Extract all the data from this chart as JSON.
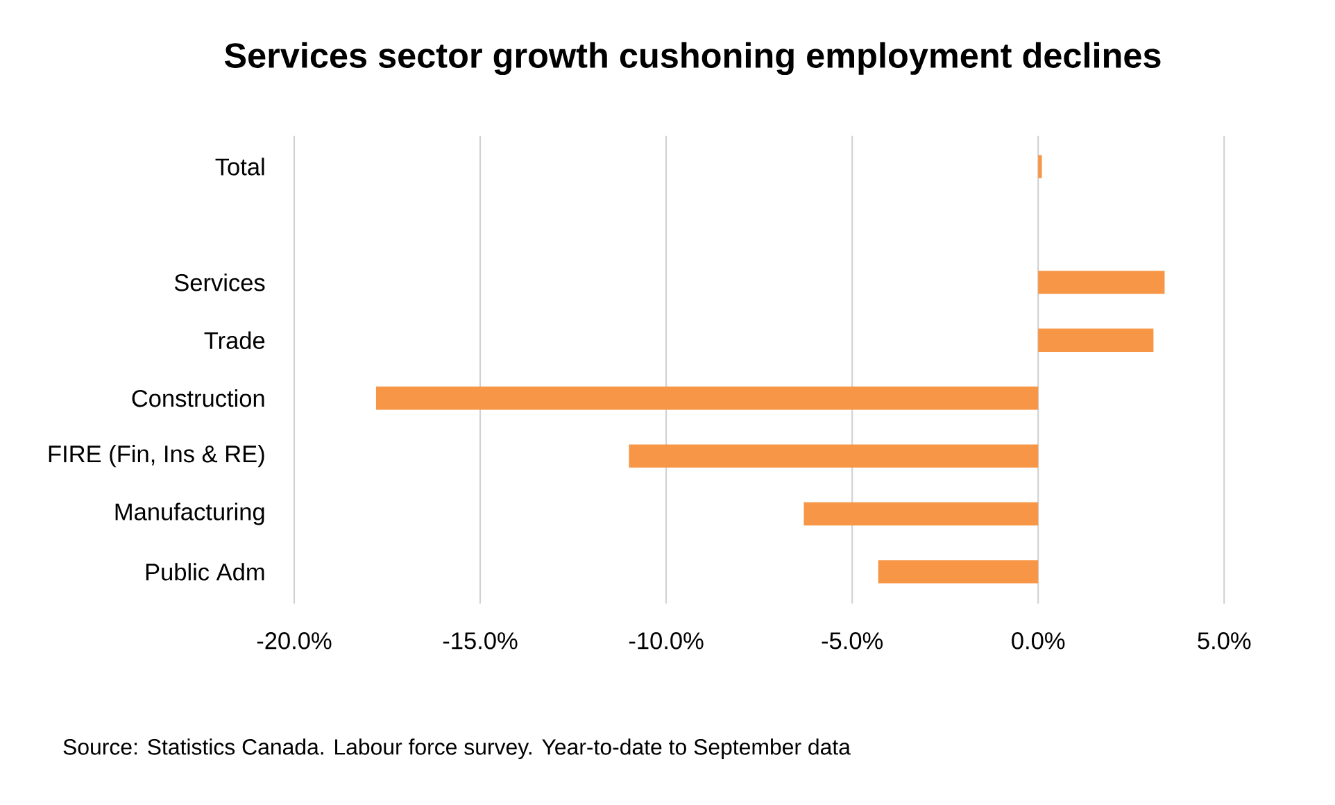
{
  "chart_data": {
    "type": "bar",
    "orientation": "horizontal",
    "title": "Services sector growth cushoning employment declines",
    "categories": [
      "Total",
      null,
      "Services",
      "Trade",
      "Construction",
      "FIRE (Fin, Ins & RE)",
      "Manufacturing",
      "Public Adm"
    ],
    "values": [
      0.1,
      null,
      3.4,
      3.1,
      -17.8,
      -11.0,
      -6.3,
      -4.3
    ],
    "color": "#f79646",
    "xlim": [
      -20,
      5
    ],
    "xticks": [
      {
        "value": -20,
        "label": "-20.0%"
      },
      {
        "value": -15,
        "label": "-15.0%"
      },
      {
        "value": -10,
        "label": "-10.0%"
      },
      {
        "value": -5,
        "label": "-5.0%"
      },
      {
        "value": 0,
        "label": "0.0%"
      },
      {
        "value": 5,
        "label": "5.0%"
      }
    ],
    "grid": "x",
    "annotations": [
      "Source: Statistics Canada. Labour force survey.  Year-to-date to September data"
    ]
  }
}
